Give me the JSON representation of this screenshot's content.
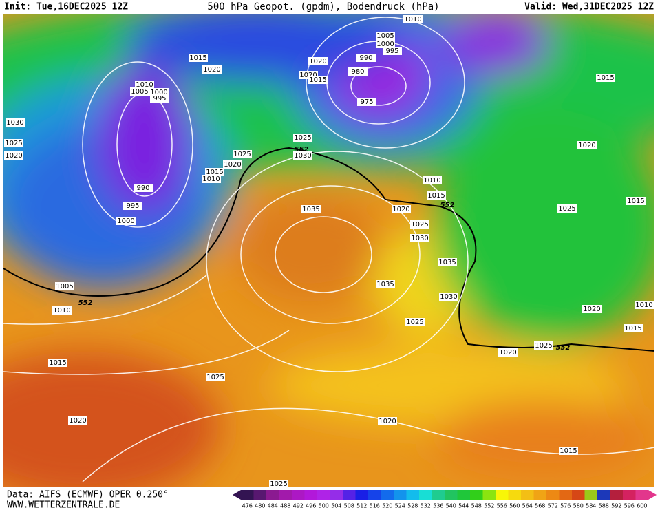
{
  "header": {
    "init": "Init: Tue,16DEC2025 12Z",
    "title": "500 hPa Geopot. (gpdm), Bodendruck (hPa)",
    "valid": "Valid: Wed,31DEC2025 12Z"
  },
  "isobar_labels": [
    "1010",
    "1005",
    "1000",
    "995",
    "990",
    "980",
    "975",
    "1015",
    "1020",
    "1010",
    "1005",
    "1000",
    "995",
    "1030",
    "1025",
    "1020",
    "990",
    "995",
    "1000",
    "1020",
    "1020",
    "1015",
    "1025",
    "1030",
    "1025",
    "1020",
    "1015",
    "1010",
    "1035",
    "1010",
    "1015",
    "1020",
    "1025",
    "1030",
    "1035",
    "1035",
    "1030",
    "1025",
    "1005",
    "1010",
    "1015",
    "1025",
    "1020",
    "1020",
    "1015",
    "1025",
    "1015",
    "1020",
    "1025",
    "1015",
    "1010",
    "1020",
    "1015",
    "1020",
    "1025"
  ],
  "contour_552_labels": [
    "552",
    "552",
    "552",
    "552"
  ],
  "footer": {
    "source": "Data: AIFS (ECMWF) OPER 0.250°",
    "site": "WWW.WETTERZENTRALE.DE"
  },
  "colorbar": {
    "labels": [
      "476",
      "480",
      "484",
      "488",
      "492",
      "496",
      "500",
      "504",
      "508",
      "512",
      "516",
      "520",
      "524",
      "528",
      "532",
      "536",
      "540",
      "544",
      "548",
      "552",
      "556",
      "560",
      "564",
      "568",
      "572",
      "576",
      "580",
      "584",
      "588",
      "592",
      "596",
      "600"
    ]
  }
}
